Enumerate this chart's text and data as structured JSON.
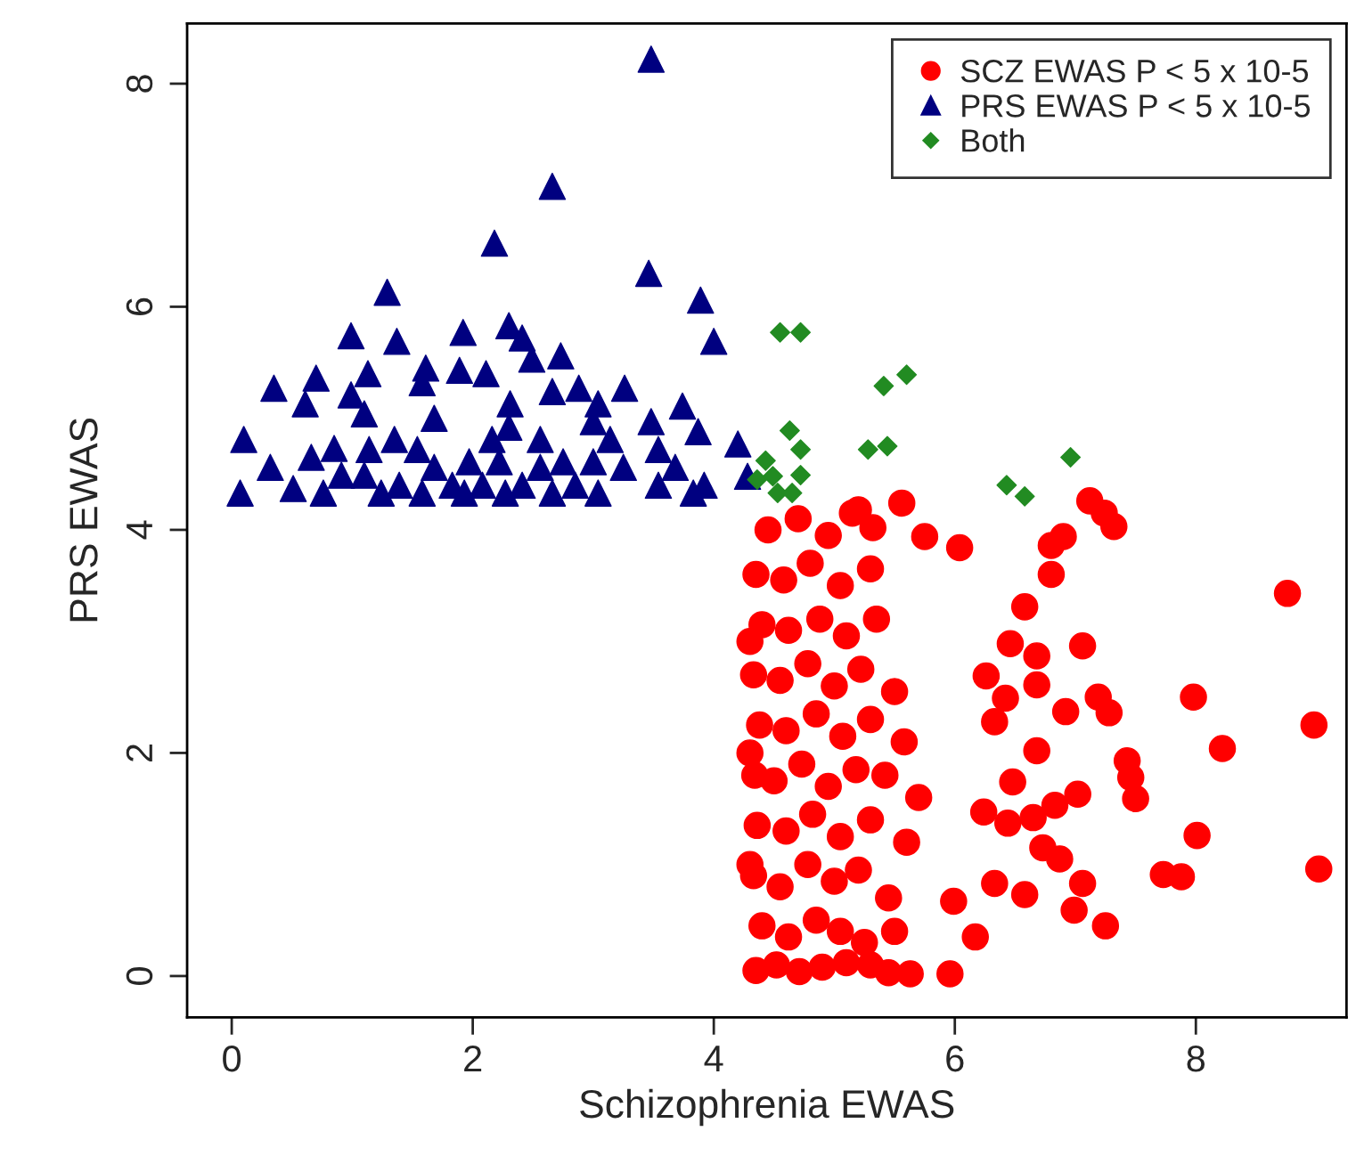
{
  "chart_data": {
    "type": "scatter",
    "xlabel": "Schizophrenia EWAS",
    "ylabel": "PRS EWAS",
    "xlim": [
      -0.37,
      9.25
    ],
    "ylim": [
      -0.37,
      8.54
    ],
    "xticks": [
      0,
      2,
      4,
      6,
      8
    ],
    "yticks": [
      0,
      2,
      4,
      6,
      8
    ],
    "grid": false,
    "legend": "top right",
    "series": [
      {
        "name": "SCZ EWAS P < 5 x 10-5",
        "color": "#ff0000",
        "marker": "circle",
        "x": [
          4.35,
          4.52,
          4.71,
          4.9,
          5.1,
          5.3,
          4.4,
          4.62,
          4.85,
          5.05,
          5.25,
          5.5,
          4.33,
          4.55,
          4.78,
          5.0,
          5.2,
          5.45,
          4.36,
          4.6,
          4.82,
          5.05,
          5.3,
          5.6,
          4.34,
          4.5,
          4.73,
          4.95,
          5.18,
          5.42,
          5.7,
          4.38,
          4.6,
          4.85,
          5.07,
          5.3,
          5.58,
          4.33,
          4.55,
          4.78,
          5.0,
          5.22,
          5.5,
          4.4,
          4.62,
          4.88,
          5.1,
          5.35,
          4.35,
          4.58,
          4.8,
          5.05,
          5.3,
          4.45,
          4.7,
          4.95,
          5.15,
          4.3,
          4.3,
          4.3,
          7.12,
          7.24,
          7.32,
          6.9,
          6.8,
          6.8,
          6.58,
          6.04,
          7.06,
          8.76,
          5.75,
          5.56,
          5.2,
          5.32,
          6.46,
          6.68,
          6.68,
          6.42,
          6.92,
          7.19,
          7.28,
          7.98,
          8.98,
          8.22,
          7.43,
          7.46,
          7.5,
          6.68,
          6.33,
          7.02,
          8.01,
          9.02,
          7.73,
          7.88,
          7.25,
          6.99,
          7.06,
          6.73,
          6.87,
          6.58,
          6.44,
          6.83,
          6.65,
          6.17,
          5.96,
          5.63,
          5.45,
          6.24,
          6.48,
          5.99,
          6.33,
          6.26
        ],
        "values": [
          0.05,
          0.1,
          0.04,
          0.08,
          0.12,
          0.1,
          0.45,
          0.35,
          0.5,
          0.4,
          0.3,
          0.4,
          0.9,
          0.8,
          1.0,
          0.85,
          0.95,
          0.7,
          1.35,
          1.3,
          1.45,
          1.25,
          1.4,
          1.2,
          1.8,
          1.75,
          1.9,
          1.7,
          1.85,
          1.8,
          1.6,
          2.25,
          2.2,
          2.35,
          2.15,
          2.3,
          2.1,
          2.7,
          2.65,
          2.8,
          2.6,
          2.75,
          2.55,
          3.15,
          3.1,
          3.2,
          3.05,
          3.2,
          3.6,
          3.55,
          3.7,
          3.5,
          3.65,
          4.0,
          4.1,
          3.95,
          4.15,
          2.0,
          3.0,
          1.0,
          4.26,
          4.15,
          4.03,
          3.94,
          3.86,
          3.6,
          3.31,
          3.84,
          2.96,
          3.43,
          3.94,
          4.24,
          4.18,
          4.02,
          2.98,
          2.87,
          2.61,
          2.49,
          2.37,
          2.5,
          2.36,
          2.5,
          2.25,
          2.04,
          1.93,
          1.78,
          1.59,
          2.02,
          2.28,
          1.63,
          1.26,
          0.96,
          0.91,
          0.89,
          0.45,
          0.59,
          0.83,
          1.15,
          1.05,
          0.73,
          1.37,
          1.53,
          1.42,
          0.35,
          0.02,
          0.02,
          0.03,
          1.47,
          1.74,
          0.67,
          0.83,
          2.69
        ]
      },
      {
        "name": "PRS EWAS P < 5 x 10-5",
        "color": "#000080",
        "marker": "triangle",
        "x": [
          3.48,
          2.66,
          2.18,
          3.46,
          1.29,
          3.89,
          4.0,
          0.99,
          1.37,
          1.92,
          2.3,
          2.41,
          2.73,
          2.49,
          0.35,
          0.7,
          0.61,
          1.13,
          1.61,
          1.89,
          2.11,
          1.58,
          0.99,
          2.66,
          2.88,
          3.26,
          3.04,
          3.74,
          3.48,
          1.1,
          1.68,
          2.31,
          0.1,
          0.32,
          0.07,
          0.66,
          0.85,
          0.51,
          1.14,
          1.35,
          1.54,
          1.68,
          1.39,
          1.83,
          2.16,
          2.3,
          2.22,
          2.08,
          2.41,
          2.56,
          2.75,
          3.0,
          3.14,
          2.85,
          3.25,
          3.54,
          3.68,
          3.87,
          3.92,
          4.2,
          4.28,
          3.54,
          0.91,
          0.76,
          1.24,
          1.58,
          1.93,
          2.27,
          2.66,
          3.04,
          3.83,
          2.56,
          3.0,
          1.97,
          1.1
        ],
        "values": [
          8.22,
          7.08,
          6.57,
          6.3,
          6.13,
          6.06,
          5.69,
          5.74,
          5.69,
          5.77,
          5.83,
          5.72,
          5.56,
          5.53,
          5.27,
          5.36,
          5.13,
          5.4,
          5.45,
          5.43,
          5.4,
          5.32,
          5.21,
          5.24,
          5.27,
          5.27,
          5.13,
          5.11,
          4.97,
          5.04,
          5.0,
          5.13,
          4.81,
          4.56,
          4.33,
          4.65,
          4.73,
          4.37,
          4.72,
          4.81,
          4.72,
          4.56,
          4.4,
          4.4,
          4.81,
          4.92,
          4.61,
          4.4,
          4.4,
          4.81,
          4.61,
          4.97,
          4.81,
          4.4,
          4.56,
          4.72,
          4.56,
          4.88,
          4.4,
          4.77,
          4.48,
          4.4,
          4.49,
          4.33,
          4.33,
          4.33,
          4.33,
          4.33,
          4.33,
          4.33,
          4.33,
          4.56,
          4.61,
          4.61,
          4.49
        ]
      },
      {
        "name": "Both",
        "color": "#228b22",
        "marker": "diamond",
        "x": [
          4.55,
          4.72,
          5.41,
          5.6,
          4.63,
          5.28,
          5.44,
          4.72,
          4.43,
          4.72,
          6.96,
          6.43,
          6.58,
          4.36,
          4.53,
          4.65,
          4.49
        ],
        "values": [
          5.77,
          5.77,
          5.29,
          5.39,
          4.89,
          4.72,
          4.75,
          4.72,
          4.62,
          4.49,
          4.65,
          4.4,
          4.3,
          4.45,
          4.33,
          4.33,
          4.48
        ]
      }
    ]
  }
}
